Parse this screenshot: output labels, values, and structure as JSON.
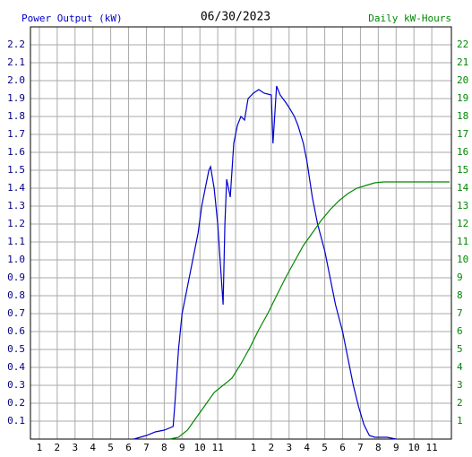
{
  "chart_data": {
    "type": "line",
    "title": "06/30/2023",
    "ylabel": "Power Output (kW)",
    "y2label": "Daily kW-Hours",
    "xlim": [
      0.5,
      24.1
    ],
    "ylim": [
      0,
      2.3
    ],
    "y2lim": [
      0,
      23
    ],
    "grid": true,
    "xticks": [
      1,
      2,
      3,
      4,
      5,
      6,
      7,
      8,
      9,
      10,
      11,
      {
        "value": 12,
        "label": null
      },
      {
        "value": 13,
        "label": "1"
      },
      {
        "value": 14,
        "label": "2"
      },
      {
        "value": 15,
        "label": "3"
      },
      {
        "value": 16,
        "label": "4"
      },
      {
        "value": 17,
        "label": "5"
      },
      {
        "value": 18,
        "label": "6"
      },
      {
        "value": 19,
        "label": "7"
      },
      {
        "value": 20,
        "label": "8"
      },
      {
        "value": 21,
        "label": "9"
      },
      {
        "value": 22,
        "label": "10"
      },
      {
        "value": 23,
        "label": "11"
      }
    ],
    "yticks": [
      0.1,
      0.2,
      0.3,
      0.4,
      0.5,
      0.6,
      0.7,
      0.8,
      0.9,
      {
        "value": 1,
        "label": "1.0"
      },
      1.1,
      1.2,
      1.3,
      1.4,
      1.5,
      1.6,
      1.7,
      1.8,
      1.9,
      {
        "value": 2,
        "label": "2.0"
      },
      2.1,
      2.2
    ],
    "y2ticks": [
      1,
      2,
      3,
      4,
      5,
      6,
      7,
      8,
      9,
      10,
      11,
      12,
      13,
      14,
      15,
      16,
      17,
      18,
      19,
      20,
      21,
      22
    ],
    "series": [
      {
        "color": "#0000cc",
        "x": [
          6.3,
          7,
          7.5,
          8,
          8.5,
          8.6,
          8.8,
          9,
          9.3,
          9.6,
          9.9,
          10.1,
          10.3,
          10.5,
          10.6,
          10.8,
          11,
          11.3,
          11.4,
          11.5,
          11.7,
          11.9,
          12.1,
          12.3,
          12.5,
          12.7,
          13,
          13.3,
          13.6,
          14,
          14.1,
          14.3,
          14.5,
          14.8,
          15,
          15.3,
          15.5,
          15.8,
          16,
          16.3,
          16.6,
          17,
          17.3,
          17.6,
          18,
          18.3,
          18.6,
          18.9,
          19.2,
          19.5,
          19.8,
          20.5,
          21
        ],
        "values": [
          0,
          0.02,
          0.04,
          0.05,
          0.07,
          0.2,
          0.5,
          0.7,
          0.85,
          1.0,
          1.15,
          1.3,
          1.4,
          1.5,
          1.52,
          1.4,
          1.2,
          0.75,
          1.2,
          1.45,
          1.35,
          1.65,
          1.75,
          1.8,
          1.78,
          1.9,
          1.93,
          1.95,
          1.93,
          1.92,
          1.65,
          1.97,
          1.92,
          1.88,
          1.85,
          1.8,
          1.75,
          1.65,
          1.55,
          1.35,
          1.2,
          1.05,
          0.9,
          0.75,
          0.6,
          0.45,
          0.3,
          0.18,
          0.08,
          0.02,
          0.01,
          0.01,
          0
        ]
      },
      {
        "color": "#008800",
        "axis": "y2",
        "x": [
          8.3,
          8.8,
          9.3,
          9.8,
          10.3,
          10.8,
          11.3,
          11.8,
          12.3,
          12.8,
          13.3,
          13.8,
          14.3,
          14.8,
          15.3,
          15.8,
          16.3,
          16.8,
          17.3,
          17.8,
          18.3,
          18.8,
          19.3,
          19.8,
          20.3,
          24
        ],
        "values": [
          0,
          0.1,
          0.5,
          1.2,
          1.9,
          2.6,
          3.0,
          3.4,
          4.2,
          5.1,
          6.1,
          7.0,
          8.0,
          9.0,
          9.9,
          10.8,
          11.5,
          12.2,
          12.8,
          13.3,
          13.7,
          14.0,
          14.15,
          14.3,
          14.35,
          14.35
        ]
      }
    ]
  }
}
